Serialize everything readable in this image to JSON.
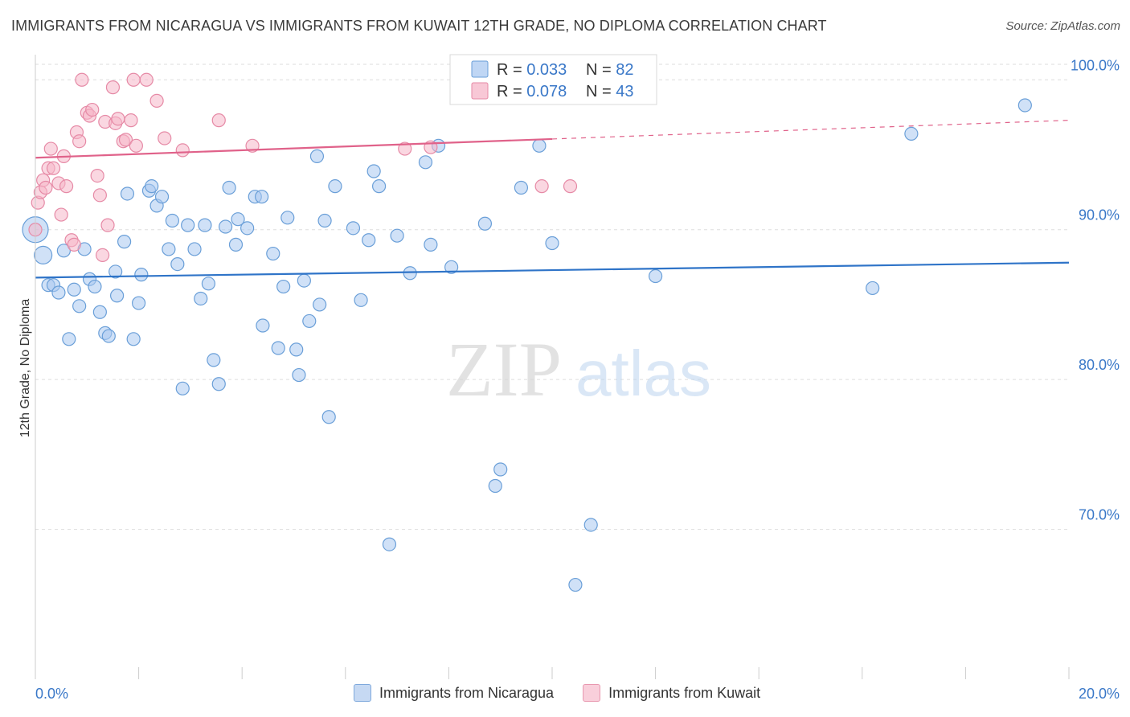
{
  "title": "IMMIGRANTS FROM NICARAGUA VS IMMIGRANTS FROM KUWAIT 12TH GRADE, NO DIPLOMA CORRELATION CHART",
  "source": "Source: ZipAtlas.com",
  "watermark": {
    "zip": "ZIP",
    "atlas": "atlas"
  },
  "colors": {
    "blue_fill": "#aac8f0",
    "blue_stroke": "#6a9fd8",
    "blue_line": "#2f74c8",
    "pink_fill": "#f6b6c8",
    "pink_stroke": "#e68aa6",
    "pink_line": "#e0628a",
    "axis_text": "#3a78c8",
    "grid": "#dddddd"
  },
  "legend_box": {
    "rows": [
      {
        "r_label": "R = ",
        "r_value": "0.033",
        "n_label": "N = ",
        "n_value": "82",
        "series": "blue"
      },
      {
        "r_label": "R = ",
        "r_value": "0.078",
        "n_label": "N = ",
        "n_value": "43",
        "series": "pink"
      }
    ]
  },
  "chart_data": {
    "type": "scatter",
    "title": "IMMIGRANTS FROM NICARAGUA VS IMMIGRANTS FROM KUWAIT 12TH GRADE, NO DIPLOMA CORRELATION CHART",
    "xlabel": "",
    "ylabel": "12th Grade, No Diploma",
    "xlim": [
      0,
      20
    ],
    "ylim": [
      60,
      102
    ],
    "x_tick_labels": [
      "0.0%",
      "20.0%"
    ],
    "y_ticks": [
      70,
      80,
      90,
      100
    ],
    "y_tick_labels": [
      "70.0%",
      "80.0%",
      "90.0%",
      "100.0%"
    ],
    "grid": true,
    "legend_position": "bottom",
    "series": [
      {
        "name": "Immigrants from Nicaragua",
        "color": "blue",
        "trend": {
          "x": [
            0,
            20
          ],
          "y": [
            86.8,
            87.8
          ],
          "dashed_from": null
        },
        "points": [
          [
            0.0,
            90.0
          ],
          [
            0.15,
            88.3
          ],
          [
            0.25,
            86.3
          ],
          [
            0.35,
            86.3
          ],
          [
            0.45,
            85.8
          ],
          [
            0.55,
            88.6
          ],
          [
            0.65,
            82.7
          ],
          [
            0.75,
            86.0
          ],
          [
            0.85,
            84.9
          ],
          [
            0.95,
            88.7
          ],
          [
            1.05,
            86.7
          ],
          [
            1.15,
            86.2
          ],
          [
            1.25,
            84.5
          ],
          [
            1.35,
            83.1
          ],
          [
            1.42,
            82.9
          ],
          [
            1.55,
            87.2
          ],
          [
            1.58,
            85.6
          ],
          [
            1.72,
            89.2
          ],
          [
            1.78,
            92.4
          ],
          [
            1.9,
            82.7
          ],
          [
            2.0,
            85.1
          ],
          [
            2.05,
            87.0
          ],
          [
            2.2,
            92.6
          ],
          [
            2.25,
            92.9
          ],
          [
            2.35,
            91.6
          ],
          [
            2.45,
            92.2
          ],
          [
            2.58,
            88.7
          ],
          [
            2.65,
            90.6
          ],
          [
            2.75,
            87.7
          ],
          [
            2.85,
            79.4
          ],
          [
            2.95,
            90.3
          ],
          [
            3.08,
            88.7
          ],
          [
            3.2,
            85.4
          ],
          [
            3.28,
            90.3
          ],
          [
            3.35,
            86.4
          ],
          [
            3.45,
            81.3
          ],
          [
            3.55,
            79.7
          ],
          [
            3.68,
            90.2
          ],
          [
            3.75,
            92.8
          ],
          [
            3.88,
            89.0
          ],
          [
            3.92,
            90.7
          ],
          [
            4.1,
            90.1
          ],
          [
            4.25,
            92.2
          ],
          [
            4.38,
            92.2
          ],
          [
            4.4,
            83.6
          ],
          [
            4.6,
            88.4
          ],
          [
            4.7,
            82.1
          ],
          [
            4.8,
            86.2
          ],
          [
            4.88,
            90.8
          ],
          [
            5.05,
            82.0
          ],
          [
            5.1,
            80.3
          ],
          [
            5.2,
            86.6
          ],
          [
            5.3,
            83.9
          ],
          [
            5.45,
            94.9
          ],
          [
            5.5,
            85.0
          ],
          [
            5.6,
            90.6
          ],
          [
            5.68,
            77.5
          ],
          [
            5.8,
            92.9
          ],
          [
            6.15,
            90.1
          ],
          [
            6.3,
            85.3
          ],
          [
            6.45,
            89.3
          ],
          [
            6.55,
            93.9
          ],
          [
            6.65,
            92.9
          ],
          [
            6.85,
            69.0
          ],
          [
            7.0,
            89.6
          ],
          [
            7.25,
            87.1
          ],
          [
            7.55,
            94.5
          ],
          [
            7.65,
            89.0
          ],
          [
            7.8,
            95.6
          ],
          [
            8.05,
            87.5
          ],
          [
            8.7,
            90.4
          ],
          [
            8.9,
            72.9
          ],
          [
            9.0,
            74.0
          ],
          [
            9.4,
            92.8
          ],
          [
            9.75,
            95.6
          ],
          [
            10.0,
            89.1
          ],
          [
            10.45,
            66.3
          ],
          [
            10.75,
            70.3
          ],
          [
            12.0,
            86.9
          ],
          [
            16.2,
            86.1
          ],
          [
            16.95,
            96.4
          ],
          [
            19.15,
            98.3
          ]
        ]
      },
      {
        "name": "Immigrants from Kuwait",
        "color": "pink",
        "trend": {
          "x": [
            0,
            20
          ],
          "y": [
            94.8,
            97.3
          ],
          "dashed_from": 10.0
        },
        "points": [
          [
            0.0,
            90.0
          ],
          [
            0.05,
            91.8
          ],
          [
            0.1,
            92.5
          ],
          [
            0.15,
            93.3
          ],
          [
            0.2,
            92.8
          ],
          [
            0.25,
            94.1
          ],
          [
            0.3,
            95.4
          ],
          [
            0.35,
            94.1
          ],
          [
            0.45,
            93.1
          ],
          [
            0.5,
            91.0
          ],
          [
            0.55,
            94.9
          ],
          [
            0.6,
            92.9
          ],
          [
            0.7,
            89.3
          ],
          [
            0.75,
            89.0
          ],
          [
            0.8,
            96.5
          ],
          [
            0.85,
            95.9
          ],
          [
            0.9,
            100.0
          ],
          [
            1.0,
            97.8
          ],
          [
            1.05,
            97.6
          ],
          [
            1.1,
            98.0
          ],
          [
            1.2,
            93.6
          ],
          [
            1.25,
            92.3
          ],
          [
            1.3,
            88.3
          ],
          [
            1.35,
            97.2
          ],
          [
            1.4,
            90.3
          ],
          [
            1.5,
            99.5
          ],
          [
            1.55,
            97.1
          ],
          [
            1.6,
            97.4
          ],
          [
            1.7,
            95.9
          ],
          [
            1.75,
            96.0
          ],
          [
            1.85,
            97.3
          ],
          [
            1.9,
            100.0
          ],
          [
            1.95,
            95.6
          ],
          [
            2.15,
            100.0
          ],
          [
            2.35,
            98.6
          ],
          [
            2.5,
            96.1
          ],
          [
            2.85,
            95.3
          ],
          [
            3.55,
            97.3
          ],
          [
            4.2,
            95.6
          ],
          [
            7.15,
            95.4
          ],
          [
            7.65,
            95.5
          ],
          [
            9.8,
            92.9
          ],
          [
            10.35,
            92.9
          ]
        ]
      }
    ]
  },
  "bottom_legend": [
    {
      "label": "Immigrants from Nicaragua",
      "series": "blue"
    },
    {
      "label": "Immigrants from Kuwait",
      "series": "pink"
    }
  ]
}
